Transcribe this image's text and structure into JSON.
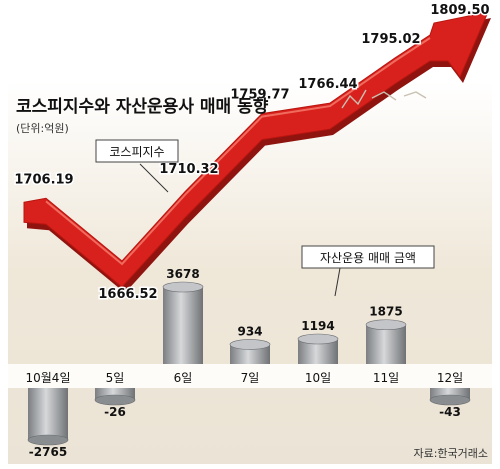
{
  "chart_data": [
    {
      "type": "line",
      "title": "코스피지수와 자산운용사 매매 동향",
      "unit_label": "(단위:억원)",
      "series": [
        {
          "name": "코스피지수",
          "x": [
            "10월4일",
            "5일",
            "6일",
            "7일",
            "10일",
            "11일",
            "12일"
          ],
          "values": [
            1706.19,
            1666.52,
            1710.32,
            1759.77,
            1766.44,
            1795.02,
            1809.5
          ],
          "labels": [
            "1706.19",
            "1666.52",
            "1710.32",
            "1759.77",
            "1766.44",
            "1795.02",
            "1809.50"
          ]
        }
      ]
    },
    {
      "type": "bar",
      "categories": [
        "10월4일",
        "5일",
        "6일",
        "7일",
        "10일",
        "11일",
        "12일"
      ],
      "series": [
        {
          "name": "자산운용 매매 금액",
          "values": [
            -2765,
            -26,
            3678,
            934,
            1194,
            1875,
            -43
          ]
        }
      ]
    }
  ],
  "source": "자료:한국거래소",
  "colors": {
    "panel": "#efe8db",
    "arrow_red": "#d8211d",
    "arrow_dark": "#8f1410",
    "bar_light": "#d2d4d6",
    "bar_dark": "#7b7e81"
  }
}
